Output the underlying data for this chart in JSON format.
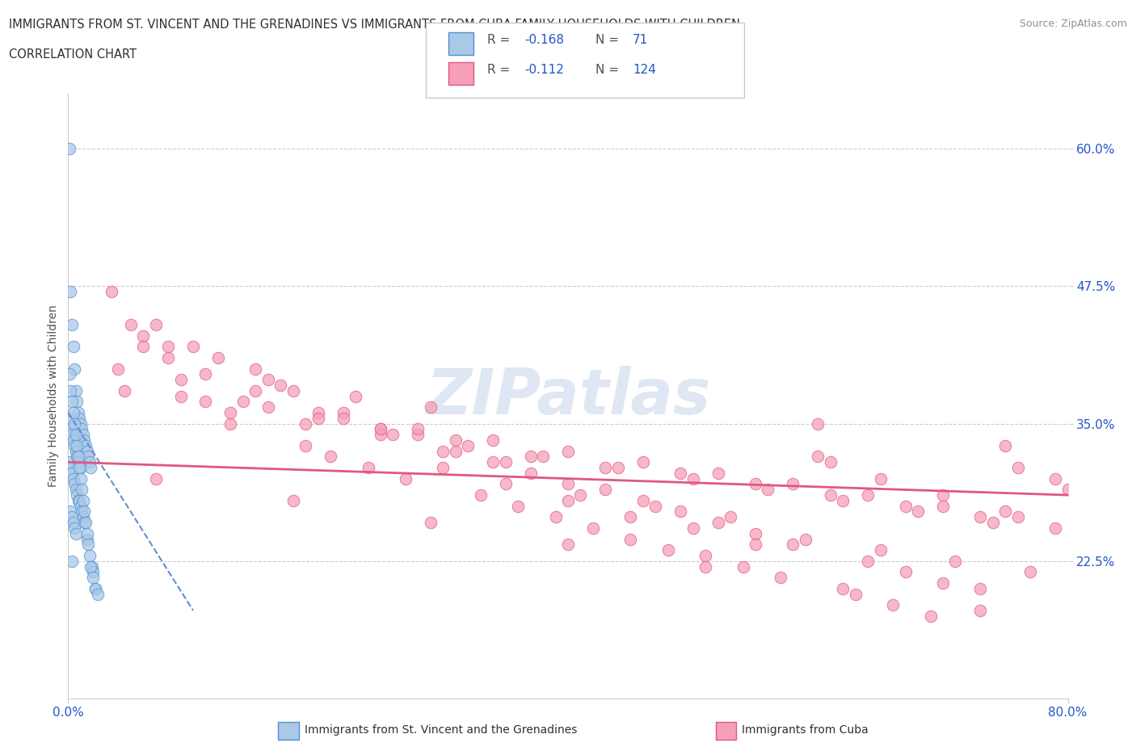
{
  "title_line1": "IMMIGRANTS FROM ST. VINCENT AND THE GRENADINES VS IMMIGRANTS FROM CUBA FAMILY HOUSEHOLDS WITH CHILDREN",
  "title_line2": "CORRELATION CHART",
  "source_text": "Source: ZipAtlas.com",
  "ylabel": "Family Households with Children",
  "xlim": [
    0.0,
    0.8
  ],
  "ylim": [
    0.1,
    0.65
  ],
  "yticks": [
    0.225,
    0.35,
    0.475,
    0.6
  ],
  "ytick_labels": [
    "22.5%",
    "35.0%",
    "47.5%",
    "60.0%"
  ],
  "xticks": [
    0.0,
    0.8
  ],
  "xtick_labels": [
    "0.0%",
    "80.0%"
  ],
  "color_blue": "#aac8e8",
  "color_pink": "#f5a0b8",
  "edge_blue": "#5090d0",
  "edge_pink": "#e05880",
  "trendline_blue_color": "#6090d0",
  "trendline_pink_color": "#e05880",
  "R_blue": -0.168,
  "N_blue": 71,
  "R_pink": -0.112,
  "N_pink": 124,
  "legend_text_color": "#2255cc",
  "title_color": "#303030",
  "watermark": "ZIPatlas",
  "blue_scatter_x": [
    0.001,
    0.001,
    0.001,
    0.002,
    0.002,
    0.002,
    0.002,
    0.003,
    0.003,
    0.003,
    0.003,
    0.003,
    0.004,
    0.004,
    0.004,
    0.004,
    0.005,
    0.005,
    0.005,
    0.005,
    0.006,
    0.006,
    0.006,
    0.006,
    0.007,
    0.007,
    0.007,
    0.008,
    0.008,
    0.008,
    0.009,
    0.009,
    0.01,
    0.01,
    0.01,
    0.011,
    0.011,
    0.012,
    0.012,
    0.013,
    0.013,
    0.014,
    0.015,
    0.015,
    0.016,
    0.017,
    0.018,
    0.019,
    0.02,
    0.022,
    0.001,
    0.002,
    0.003,
    0.004,
    0.005,
    0.006,
    0.007,
    0.008,
    0.009,
    0.01,
    0.011,
    0.012,
    0.013,
    0.014,
    0.015,
    0.016,
    0.017,
    0.018,
    0.02,
    0.022,
    0.024
  ],
  "blue_scatter_y": [
    0.6,
    0.355,
    0.315,
    0.47,
    0.345,
    0.31,
    0.27,
    0.44,
    0.34,
    0.305,
    0.265,
    0.225,
    0.42,
    0.335,
    0.3,
    0.26,
    0.4,
    0.33,
    0.295,
    0.255,
    0.38,
    0.325,
    0.29,
    0.25,
    0.37,
    0.32,
    0.285,
    0.36,
    0.315,
    0.28,
    0.355,
    0.28,
    0.35,
    0.31,
    0.275,
    0.345,
    0.27,
    0.34,
    0.265,
    0.335,
    0.26,
    0.33,
    0.325,
    0.245,
    0.32,
    0.315,
    0.31,
    0.22,
    0.215,
    0.2,
    0.395,
    0.38,
    0.37,
    0.36,
    0.35,
    0.34,
    0.33,
    0.32,
    0.31,
    0.3,
    0.29,
    0.28,
    0.27,
    0.26,
    0.25,
    0.24,
    0.23,
    0.22,
    0.21,
    0.2,
    0.195
  ],
  "pink_scatter_x": [
    0.035,
    0.06,
    0.045,
    0.08,
    0.12,
    0.07,
    0.15,
    0.09,
    0.18,
    0.11,
    0.22,
    0.13,
    0.25,
    0.16,
    0.28,
    0.19,
    0.31,
    0.21,
    0.34,
    0.24,
    0.37,
    0.27,
    0.4,
    0.3,
    0.43,
    0.33,
    0.46,
    0.36,
    0.49,
    0.39,
    0.52,
    0.42,
    0.55,
    0.45,
    0.58,
    0.48,
    0.61,
    0.51,
    0.64,
    0.54,
    0.67,
    0.57,
    0.7,
    0.6,
    0.73,
    0.63,
    0.76,
    0.66,
    0.79,
    0.69,
    0.05,
    0.1,
    0.15,
    0.2,
    0.25,
    0.3,
    0.35,
    0.4,
    0.45,
    0.5,
    0.55,
    0.6,
    0.65,
    0.7,
    0.75,
    0.8,
    0.08,
    0.14,
    0.2,
    0.26,
    0.32,
    0.38,
    0.44,
    0.5,
    0.56,
    0.62,
    0.68,
    0.74,
    0.04,
    0.11,
    0.17,
    0.23,
    0.29,
    0.35,
    0.41,
    0.47,
    0.53,
    0.59,
    0.65,
    0.71,
    0.77,
    0.06,
    0.13,
    0.19,
    0.25,
    0.31,
    0.37,
    0.43,
    0.49,
    0.55,
    0.61,
    0.67,
    0.73,
    0.79,
    0.09,
    0.16,
    0.22,
    0.28,
    0.34,
    0.4,
    0.46,
    0.52,
    0.58,
    0.64,
    0.7,
    0.76,
    0.07,
    0.18,
    0.29,
    0.4,
    0.51,
    0.62,
    0.73,
    0.75
  ],
  "pink_scatter_y": [
    0.47,
    0.43,
    0.38,
    0.42,
    0.41,
    0.44,
    0.4,
    0.39,
    0.38,
    0.37,
    0.36,
    0.35,
    0.345,
    0.39,
    0.34,
    0.33,
    0.325,
    0.32,
    0.315,
    0.31,
    0.305,
    0.3,
    0.295,
    0.31,
    0.29,
    0.285,
    0.28,
    0.275,
    0.27,
    0.265,
    0.26,
    0.255,
    0.25,
    0.245,
    0.24,
    0.235,
    0.315,
    0.23,
    0.225,
    0.22,
    0.215,
    0.21,
    0.205,
    0.35,
    0.2,
    0.195,
    0.31,
    0.185,
    0.3,
    0.175,
    0.44,
    0.42,
    0.38,
    0.36,
    0.34,
    0.325,
    0.315,
    0.28,
    0.265,
    0.255,
    0.24,
    0.32,
    0.3,
    0.285,
    0.27,
    0.29,
    0.41,
    0.37,
    0.355,
    0.34,
    0.33,
    0.32,
    0.31,
    0.3,
    0.29,
    0.28,
    0.27,
    0.26,
    0.4,
    0.395,
    0.385,
    0.375,
    0.365,
    0.295,
    0.285,
    0.275,
    0.265,
    0.245,
    0.235,
    0.225,
    0.215,
    0.42,
    0.36,
    0.35,
    0.345,
    0.335,
    0.32,
    0.31,
    0.305,
    0.295,
    0.285,
    0.275,
    0.265,
    0.255,
    0.375,
    0.365,
    0.355,
    0.345,
    0.335,
    0.325,
    0.315,
    0.305,
    0.295,
    0.285,
    0.275,
    0.265,
    0.3,
    0.28,
    0.26,
    0.24,
    0.22,
    0.2,
    0.18,
    0.33
  ],
  "pink_trendline_x": [
    0.0,
    0.8
  ],
  "pink_trendline_y": [
    0.315,
    0.285
  ],
  "blue_trendline_x": [
    0.0,
    0.1
  ],
  "blue_trendline_y": [
    0.36,
    0.18
  ]
}
